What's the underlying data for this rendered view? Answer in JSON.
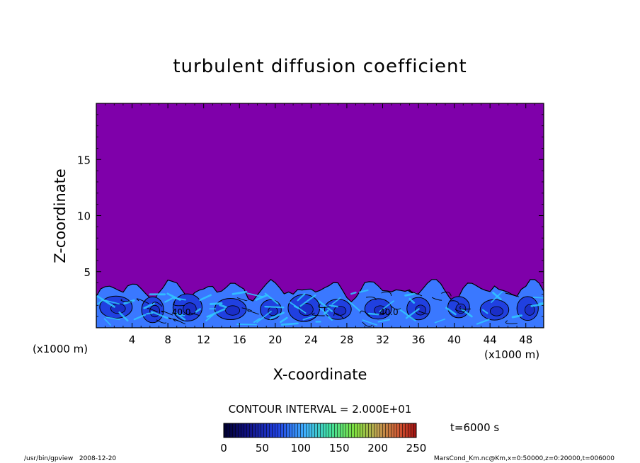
{
  "chart_data": {
    "type": "heatmap",
    "title": "turbulent diffusion coefficient",
    "xlabel": "X-coordinate",
    "ylabel": "Z-coordinate",
    "x_unit": "(x1000 m)",
    "y_unit": "(x1000 m)",
    "xlim": [
      0,
      50
    ],
    "ylim": [
      0,
      20
    ],
    "x_ticks": [
      4,
      8,
      12,
      16,
      20,
      24,
      28,
      32,
      36,
      40,
      44,
      48
    ],
    "y_ticks": [
      5,
      10,
      15
    ],
    "contour_interval_text": "CONTOUR INTERVAL = 2.000E+01",
    "contour_labels": [
      {
        "x": 9.5,
        "z": 1.4,
        "text": "40.0"
      },
      {
        "x": 32.7,
        "z": 1.4,
        "text": "40.0"
      }
    ],
    "time_label": "t=6000 s",
    "colorbar": {
      "min": 0,
      "max": 250,
      "ticks": [
        0,
        50,
        100,
        150,
        200,
        250
      ]
    },
    "background_value": 0,
    "boundary_layer_top_km": 4.3,
    "colors": {
      "background": "#7f00aa",
      "deep_blue": "#2040e0",
      "mid_blue": "#3a78ff",
      "cyan": "#30c8ff"
    },
    "footer_left": "/usr/bin/gpview   2008-12-20",
    "footer_right": "MarsCond_Km.nc@Km,x=0:50000,z=0:20000,t=006000"
  }
}
